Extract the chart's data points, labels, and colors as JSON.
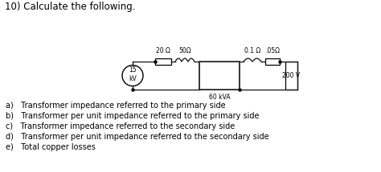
{
  "title": "10) Calculate the following.",
  "title_fontsize": 8.5,
  "background_color": "#ffffff",
  "circuit": {
    "source_label": "15\nkV",
    "transformer_label": "60 kVA",
    "load_label": "200 V",
    "r1_label": "20 Ω",
    "l1_label": "50Ω",
    "l2_label": "0.1 Ω",
    "r2_label": ".05Ω"
  },
  "list_items": [
    "a)   Transformer impedance referred to the primary side",
    "b)   Transformer per unit impedance referred to the primary side",
    "c)   Transformer impedance referred to the secondary side",
    "d)   Transformer per unit impedance referred to the secondary side",
    "e)   Total copper losses"
  ],
  "list_fontsize": 7.0
}
